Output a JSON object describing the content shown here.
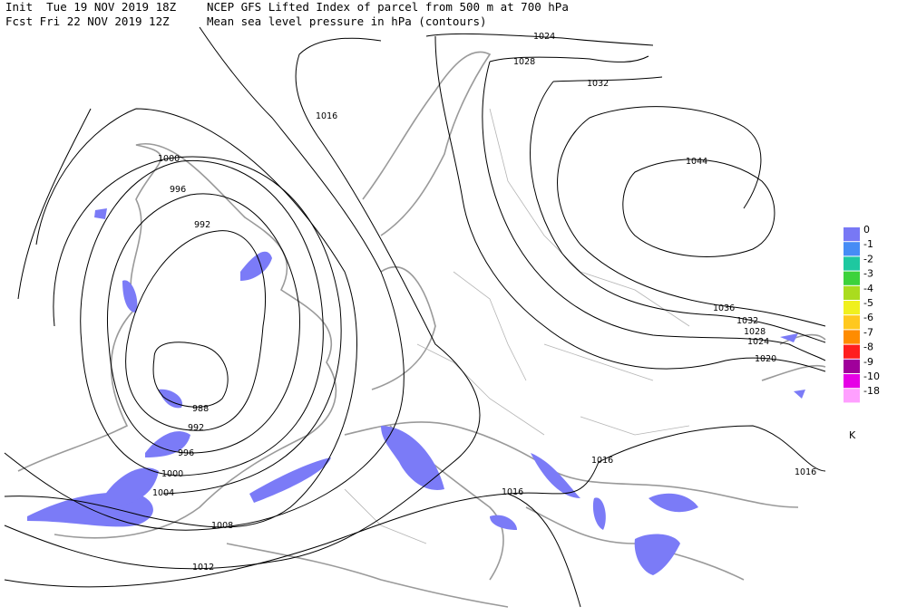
{
  "header": {
    "init": "Init  Tue 19 NOV 2019 18Z",
    "fcst": "Fcst Fri 22 NOV 2019 12Z",
    "title": "NCEP GFS Lifted Index of parcel from 500 m at 700 hPa",
    "subtitle": "Mean sea level pressure in hPa (contours)"
  },
  "contour_labels": [
    1024,
    1028,
    1032,
    1016,
    1044,
    1000,
    996,
    992,
    1036,
    1032,
    1028,
    1024,
    1020,
    988,
    992,
    996,
    1000,
    1004,
    1008,
    1012,
    1016,
    1016,
    1016
  ],
  "legend": {
    "items": [
      {
        "label": 0,
        "color": "#7878f5"
      },
      {
        "label": -1,
        "color": "#468cf5"
      },
      {
        "label": -2,
        "color": "#1ec8a0"
      },
      {
        "label": -3,
        "color": "#3cd23c"
      },
      {
        "label": -4,
        "color": "#aadc1e"
      },
      {
        "label": -5,
        "color": "#f0f01e"
      },
      {
        "label": -6,
        "color": "#ffc81e"
      },
      {
        "label": -7,
        "color": "#ff8c00"
      },
      {
        "label": -8,
        "color": "#ff1e1e"
      },
      {
        "label": -9,
        "color": "#a0009b"
      },
      {
        "label": -10,
        "color": "#e600e6"
      },
      {
        "label": -18,
        "color": "#ffa0ff"
      }
    ],
    "unit": "K"
  }
}
